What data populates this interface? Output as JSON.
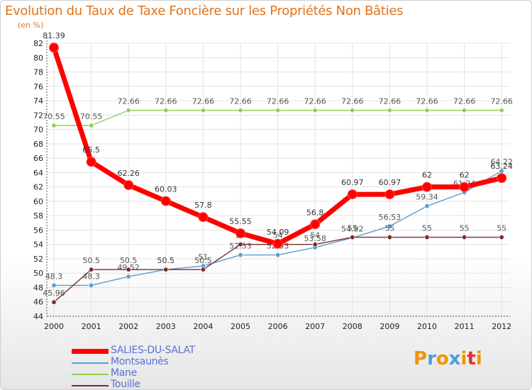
{
  "header": {
    "title": "Evolution du Taux de Taxe Foncière sur les Propriétés Non Bâties",
    "unit": "(en %)"
  },
  "logo": {
    "letters": [
      "P",
      "r",
      "o",
      "x",
      "i",
      "t",
      "i"
    ],
    "colors": [
      "#f29400",
      "#4a9fd8",
      "#f29400",
      "#4a9fd8",
      "#f29400",
      "#e5332a",
      "#f29400"
    ]
  },
  "chart_data": {
    "type": "line",
    "title": "Evolution du Taux de Taxe Foncière sur les Propriétés Non Bâties",
    "ylabel": "(en %)",
    "xlabel": "",
    "categories": [
      "2000",
      "2001",
      "2002",
      "2003",
      "2004",
      "2005",
      "2006",
      "2007",
      "2008",
      "2009",
      "2010",
      "2011",
      "2012"
    ],
    "ylim": [
      44,
      82
    ],
    "yticks": [
      "44",
      "46",
      "48",
      "50",
      "52",
      "54",
      "56",
      "58",
      "60",
      "62",
      "64",
      "66",
      "68",
      "70",
      "72",
      "74",
      "76",
      "78",
      "80",
      "82"
    ],
    "legend_position": "bottom-left",
    "series": [
      {
        "name": "SALIES-DU-SALAT",
        "color": "#ff0000",
        "emphasis": true,
        "values": [
          81.39,
          65.5,
          62.26,
          60.03,
          57.8,
          55.55,
          54.09,
          56.8,
          60.97,
          60.97,
          62,
          62,
          63.24
        ],
        "labels": [
          "81.39",
          "65.5",
          "62.26",
          "60.03",
          "57.8",
          "55.55",
          "54.09",
          "56.8",
          "60.97",
          "60.97",
          "62",
          "62",
          "63.24"
        ]
      },
      {
        "name": "Montsaunès",
        "color": "#5b9bd5",
        "emphasis": false,
        "values": [
          48.3,
          48.3,
          49.52,
          50.5,
          51,
          52.53,
          52.53,
          53.58,
          54.92,
          56.53,
          59.34,
          61.24,
          64.22
        ],
        "labels": [
          "48.3",
          "48.3",
          "49.52",
          "50.5",
          "51",
          "52.53",
          "52.53",
          "53.58",
          "54.92",
          "56.53",
          "59.34",
          "61.24",
          "64.22"
        ]
      },
      {
        "name": "Mane",
        "color": "#92d050",
        "emphasis": false,
        "values": [
          70.55,
          70.55,
          72.66,
          72.66,
          72.66,
          72.66,
          72.66,
          72.66,
          72.66,
          72.66,
          72.66,
          72.66,
          72.66
        ],
        "labels": [
          "70.55",
          "70.55",
          "72.66",
          "72.66",
          "72.66",
          "72.66",
          "72.66",
          "72.66",
          "72.66",
          "72.66",
          "72.66",
          "72.66",
          "72.66"
        ]
      },
      {
        "name": "Touille",
        "color": "#7b2c2c",
        "emphasis": false,
        "values": [
          45.96,
          50.5,
          50.5,
          50.5,
          50.5,
          54,
          54,
          54,
          55,
          55,
          55,
          55,
          55
        ],
        "labels": [
          "45.96",
          "50.5",
          "50.5",
          "50.5",
          "50.5",
          "54",
          "54",
          "54",
          "55",
          "55",
          "55",
          "55",
          "55"
        ]
      }
    ]
  }
}
